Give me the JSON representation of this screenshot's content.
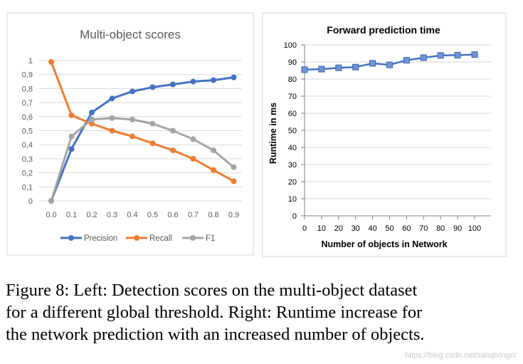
{
  "chart_data": [
    {
      "type": "line",
      "title": "Multi-object scores",
      "categories": [
        "0.0",
        "0.1",
        "0.2",
        "0.3",
        "0.4",
        "0.5",
        "0.6",
        "0.7",
        "0.8",
        "0.9"
      ],
      "y_ticks": [
        "0",
        "0,1",
        "0,2",
        "0,3",
        "0,4",
        "0,5",
        "0,6",
        "0,7",
        "0,8",
        "0,9",
        "1"
      ],
      "ylim": [
        0,
        1
      ],
      "grid": true,
      "legend_position": "bottom",
      "series": [
        {
          "name": "Precision",
          "color": "#4472C4",
          "values": [
            0,
            0.37,
            0.63,
            0.73,
            0.78,
            0.81,
            0.83,
            0.85,
            0.86,
            0.88
          ]
        },
        {
          "name": "Recall",
          "color": "#ED7D31",
          "values": [
            0.99,
            0.61,
            0.55,
            0.5,
            0.46,
            0.41,
            0.36,
            0.3,
            0.22,
            0.14
          ]
        },
        {
          "name": "F1",
          "color": "#A5A5A5",
          "values": [
            0,
            0.46,
            0.58,
            0.59,
            0.58,
            0.55,
            0.5,
            0.44,
            0.36,
            0.24
          ]
        }
      ]
    },
    {
      "type": "line",
      "title": "Forward prediction time",
      "xlabel": "Number of objects in Network",
      "ylabel": "Runtime in ms",
      "x": [
        0,
        10,
        20,
        30,
        40,
        50,
        60,
        70,
        80,
        90,
        100
      ],
      "x_ticks": [
        "0",
        "10",
        "20",
        "30",
        "40",
        "50",
        "60",
        "70",
        "80",
        "90",
        "100"
      ],
      "y_ticks": [
        "0",
        "10",
        "20",
        "30",
        "40",
        "50",
        "60",
        "70",
        "80",
        "90",
        "100"
      ],
      "xlim": [
        0,
        100
      ],
      "ylim": [
        0,
        100
      ],
      "grid": true,
      "series": [
        {
          "name": "Runtime",
          "color": "#4472C4",
          "values": [
            85.5,
            85.8,
            86.6,
            87.0,
            89.2,
            88.3,
            91.0,
            92.5,
            93.8,
            94.0,
            94.3
          ]
        }
      ]
    }
  ],
  "caption_lines": [
    "Figure 8: Left: Detection scores on the multi-object dataset",
    "for a different global threshold. Right: Runtime increase for",
    "the network prediction with an increased number of objects."
  ],
  "watermark": "https://blog.csdn.net/sanqixingci"
}
